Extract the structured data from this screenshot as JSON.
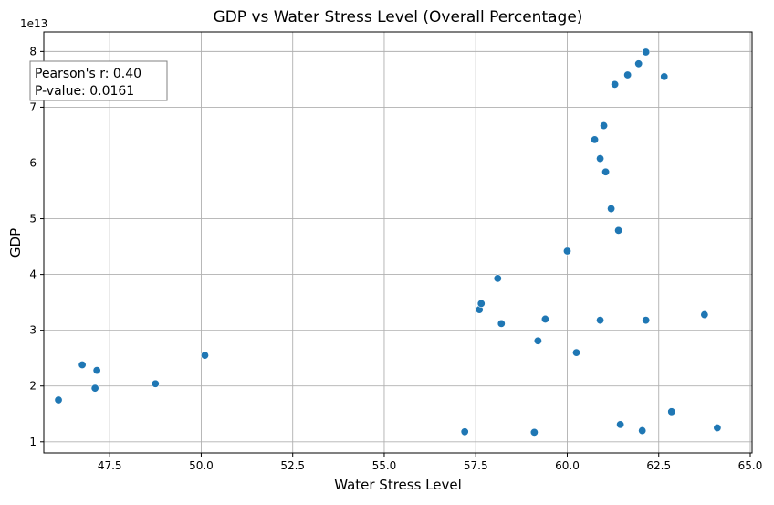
{
  "chart_data": {
    "type": "scatter",
    "title": "GDP vs Water Stress Level (Overall Percentage)",
    "xlabel": "Water Stress Level",
    "ylabel": "GDP",
    "y_offset_label": "1e13",
    "xlim": [
      45.7,
      65.05
    ],
    "ylim": [
      0.8,
      8.35
    ],
    "y_multiplier": 10000000000000.0,
    "xticks": [
      47.5,
      50.0,
      52.5,
      55.0,
      57.5,
      60.0,
      62.5,
      65.0
    ],
    "xtick_labels": [
      "47.5",
      "50.0",
      "52.5",
      "55.0",
      "57.5",
      "60.0",
      "62.5",
      "65.0"
    ],
    "yticks": [
      1,
      2,
      3,
      4,
      5,
      6,
      7,
      8
    ],
    "ytick_labels": [
      "1",
      "2",
      "3",
      "4",
      "5",
      "6",
      "7",
      "8"
    ],
    "grid": true,
    "point_color": "#1f77b4",
    "annotation": {
      "line1": "Pearson's r: 0.40",
      "line2": "P-value: 0.0161",
      "placement": "top-left"
    },
    "points": [
      {
        "x": 46.1,
        "y": 1.75
      },
      {
        "x": 46.75,
        "y": 2.38
      },
      {
        "x": 47.1,
        "y": 1.96
      },
      {
        "x": 47.15,
        "y": 2.28
      },
      {
        "x": 48.75,
        "y": 2.04
      },
      {
        "x": 50.1,
        "y": 2.55
      },
      {
        "x": 57.2,
        "y": 1.18
      },
      {
        "x": 57.6,
        "y": 3.37
      },
      {
        "x": 57.65,
        "y": 3.48
      },
      {
        "x": 58.1,
        "y": 3.93
      },
      {
        "x": 58.2,
        "y": 3.12
      },
      {
        "x": 59.1,
        "y": 1.17
      },
      {
        "x": 59.2,
        "y": 2.81
      },
      {
        "x": 59.4,
        "y": 3.2
      },
      {
        "x": 60.0,
        "y": 4.42
      },
      {
        "x": 60.25,
        "y": 2.6
      },
      {
        "x": 60.75,
        "y": 6.42
      },
      {
        "x": 60.9,
        "y": 3.18
      },
      {
        "x": 60.9,
        "y": 6.08
      },
      {
        "x": 61.0,
        "y": 6.67
      },
      {
        "x": 61.05,
        "y": 5.84
      },
      {
        "x": 61.2,
        "y": 5.18
      },
      {
        "x": 61.3,
        "y": 7.41
      },
      {
        "x": 61.4,
        "y": 4.79
      },
      {
        "x": 61.45,
        "y": 1.31
      },
      {
        "x": 61.65,
        "y": 7.58
      },
      {
        "x": 61.95,
        "y": 7.78
      },
      {
        "x": 62.05,
        "y": 1.2
      },
      {
        "x": 62.15,
        "y": 3.18
      },
      {
        "x": 62.15,
        "y": 7.99
      },
      {
        "x": 62.65,
        "y": 7.55
      },
      {
        "x": 62.85,
        "y": 1.54
      },
      {
        "x": 63.75,
        "y": 3.28
      },
      {
        "x": 64.1,
        "y": 1.25
      }
    ]
  }
}
